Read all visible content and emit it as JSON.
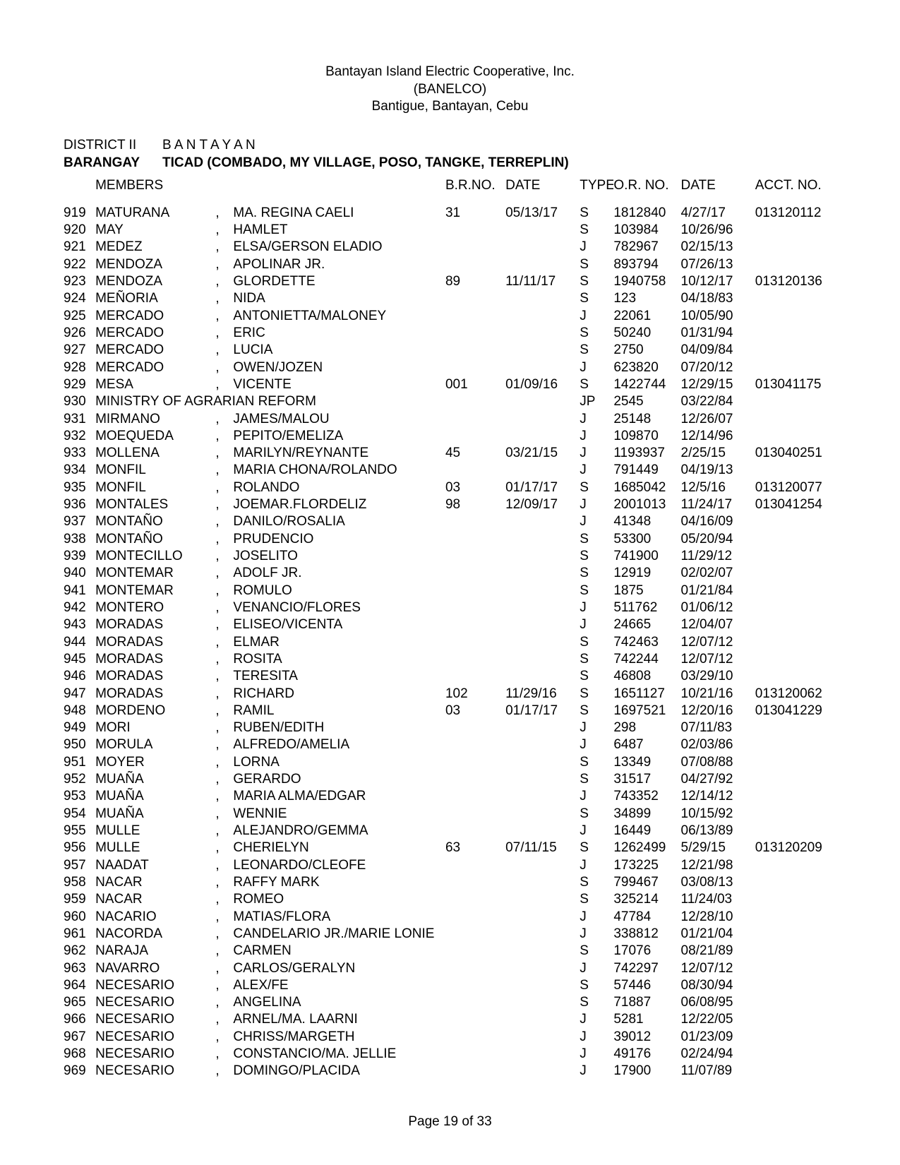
{
  "header": {
    "line1": "Bantayan Island Electric Cooperative, Inc.",
    "line2": "(BANELCO)",
    "line3": "Bantigue, Bantayan, Cebu"
  },
  "meta": {
    "district_label": "DISTRICT II",
    "district_value": "B A N T A Y A N",
    "barangay_label": "BARANGAY",
    "barangay_value": "TICAD (COMBADO, MY VILLAGE, POSO, TANGKE, TERREPLIN)",
    "members_label": "MEMBERS"
  },
  "columns": {
    "brno": "B.R.NO.",
    "date": "DATE",
    "type": "TYPE",
    "orno": "O.R. NO.",
    "odate": "DATE",
    "acct": "ACCT. NO."
  },
  "rows": [
    {
      "no": "919",
      "last": "MATURANA",
      "sep": ",",
      "first": "MA. REGINA CAELI",
      "brno": "31",
      "date": "05/13/17",
      "type": "S",
      "orno": "1812840",
      "odate": "4/27/17",
      "acct": "013120112"
    },
    {
      "no": "920",
      "last": "MAY",
      "sep": ",",
      "first": "HAMLET",
      "brno": "",
      "date": "",
      "type": "S",
      "orno": "103984",
      "odate": "10/26/96",
      "acct": ""
    },
    {
      "no": "921",
      "last": "MEDEZ",
      "sep": ",",
      "first": "ELSA/GERSON ELADIO",
      "brno": "",
      "date": "",
      "type": "J",
      "orno": "782967",
      "odate": "02/15/13",
      "acct": ""
    },
    {
      "no": "922",
      "last": "MENDOZA",
      "sep": ",",
      "first": "APOLINAR JR.",
      "brno": "",
      "date": "",
      "type": "S",
      "orno": "893794",
      "odate": "07/26/13",
      "acct": ""
    },
    {
      "no": "923",
      "last": "MENDOZA",
      "sep": ",",
      "first": "GLORDETTE",
      "brno": "89",
      "date": "11/11/17",
      "type": "S",
      "orno": "1940758",
      "odate": "10/12/17",
      "acct": "013120136"
    },
    {
      "no": "924",
      "last": "MEÑORIA",
      "sep": ",",
      "first": "NIDA",
      "brno": "",
      "date": "",
      "type": "S",
      "orno": "123",
      "odate": "04/18/83",
      "acct": ""
    },
    {
      "no": "925",
      "last": "MERCADO",
      "sep": ",",
      "first": "ANTONIETTA/MALONEY",
      "brno": "",
      "date": "",
      "type": "J",
      "orno": "22061",
      "odate": "10/05/90",
      "acct": ""
    },
    {
      "no": "926",
      "last": "MERCADO",
      "sep": ",",
      "first": "ERIC",
      "brno": "",
      "date": "",
      "type": "S",
      "orno": "50240",
      "odate": "01/31/94",
      "acct": ""
    },
    {
      "no": "927",
      "last": "MERCADO",
      "sep": ",",
      "first": "LUCIA",
      "brno": "",
      "date": "",
      "type": "S",
      "orno": "2750",
      "odate": "04/09/84",
      "acct": ""
    },
    {
      "no": "928",
      "last": "MERCADO",
      "sep": ",",
      "first": "OWEN/JOZEN",
      "brno": "",
      "date": "",
      "type": "J",
      "orno": "623820",
      "odate": "07/20/12",
      "acct": ""
    },
    {
      "no": "929",
      "last": "MESA",
      "sep": ",",
      "first": "VICENTE",
      "brno": "001",
      "date": "01/09/16",
      "type": "S",
      "orno": "1422744",
      "odate": "12/29/15",
      "acct": "013041175"
    },
    {
      "no": "930",
      "last": "MINISTRY OF AGRARIAN REFORM",
      "sep": "",
      "first": "",
      "brno": "",
      "date": "",
      "type": "JP",
      "orno": "2545",
      "odate": "03/22/84",
      "acct": ""
    },
    {
      "no": "931",
      "last": "MIRMANO",
      "sep": ",",
      "first": "JAMES/MALOU",
      "brno": "",
      "date": "",
      "type": "J",
      "orno": "25148",
      "odate": "12/26/07",
      "acct": ""
    },
    {
      "no": "932",
      "last": "MOEQUEDA",
      "sep": ",",
      "first": "PEPITO/EMELIZA",
      "brno": "",
      "date": "",
      "type": "J",
      "orno": "109870",
      "odate": "12/14/96",
      "acct": ""
    },
    {
      "no": "933",
      "last": "MOLLENA",
      "sep": ",",
      "first": "MARILYN/REYNANTE",
      "brno": "45",
      "date": "03/21/15",
      "type": "J",
      "orno": "1193937",
      "odate": "2/25/15",
      "acct": "013040251"
    },
    {
      "no": "934",
      "last": "MONFIL",
      "sep": ",",
      "first": "MARIA CHONA/ROLANDO",
      "brno": "",
      "date": "",
      "type": "J",
      "orno": "791449",
      "odate": "04/19/13",
      "acct": ""
    },
    {
      "no": "935",
      "last": "MONFIL",
      "sep": ",",
      "first": "ROLANDO",
      "brno": "03",
      "date": "01/17/17",
      "type": "S",
      "orno": "1685042",
      "odate": "12/5/16",
      "acct": "013120077"
    },
    {
      "no": "936",
      "last": "MONTALES",
      "sep": ",",
      "first": "JOEMAR.FLORDELIZ",
      "brno": "98",
      "date": "12/09/17",
      "type": "J",
      "orno": "2001013",
      "odate": "11/24/17",
      "acct": "013041254"
    },
    {
      "no": "937",
      "last": "MONTAÑO",
      "sep": ",",
      "first": "DANILO/ROSALIA",
      "brno": "",
      "date": "",
      "type": "J",
      "orno": "41348",
      "odate": "04/16/09",
      "acct": ""
    },
    {
      "no": "938",
      "last": "MONTAÑO",
      "sep": ",",
      "first": "PRUDENCIO",
      "brno": "",
      "date": "",
      "type": "S",
      "orno": "53300",
      "odate": "05/20/94",
      "acct": ""
    },
    {
      "no": "939",
      "last": "MONTECILLO",
      "sep": ",",
      "first": "JOSELITO",
      "brno": "",
      "date": "",
      "type": "S",
      "orno": "741900",
      "odate": "11/29/12",
      "acct": ""
    },
    {
      "no": "940",
      "last": "MONTEMAR",
      "sep": ",",
      "first": "ADOLF JR.",
      "brno": "",
      "date": "",
      "type": "S",
      "orno": "12919",
      "odate": "02/02/07",
      "acct": ""
    },
    {
      "no": "941",
      "last": "MONTEMAR",
      "sep": ",",
      "first": "ROMULO",
      "brno": "",
      "date": "",
      "type": "S",
      "orno": "1875",
      "odate": "01/21/84",
      "acct": ""
    },
    {
      "no": "942",
      "last": "MONTERO",
      "sep": ",",
      "first": "VENANCIO/FLORES",
      "brno": "",
      "date": "",
      "type": "J",
      "orno": "511762",
      "odate": "01/06/12",
      "acct": ""
    },
    {
      "no": "943",
      "last": "MORADAS",
      "sep": ",",
      "first": "ELISEO/VICENTA",
      "brno": "",
      "date": "",
      "type": "J",
      "orno": "24665",
      "odate": "12/04/07",
      "acct": ""
    },
    {
      "no": "944",
      "last": "MORADAS",
      "sep": ",",
      "first": "ELMAR",
      "brno": "",
      "date": "",
      "type": "S",
      "orno": "742463",
      "odate": "12/07/12",
      "acct": ""
    },
    {
      "no": "945",
      "last": "MORADAS",
      "sep": ",",
      "first": "ROSITA",
      "brno": "",
      "date": "",
      "type": "S",
      "orno": "742244",
      "odate": "12/07/12",
      "acct": ""
    },
    {
      "no": "946",
      "last": "MORADAS",
      "sep": ",",
      "first": "TERESITA",
      "brno": "",
      "date": "",
      "type": "S",
      "orno": "46808",
      "odate": "03/29/10",
      "acct": ""
    },
    {
      "no": "947",
      "last": "MORADAS",
      "sep": ",",
      "first": "RICHARD",
      "brno": "102",
      "date": "11/29/16",
      "type": "S",
      "orno": "1651127",
      "odate": "10/21/16",
      "acct": "013120062"
    },
    {
      "no": "948",
      "last": "MORDENO",
      "sep": ",",
      "first": "RAMIL",
      "brno": "03",
      "date": "01/17/17",
      "type": "S",
      "orno": "1697521",
      "odate": "12/20/16",
      "acct": "013041229"
    },
    {
      "no": "949",
      "last": "MORI",
      "sep": ",",
      "first": "RUBEN/EDITH",
      "brno": "",
      "date": "",
      "type": "J",
      "orno": "298",
      "odate": "07/11/83",
      "acct": ""
    },
    {
      "no": "950",
      "last": "MORULA",
      "sep": ",",
      "first": "ALFREDO/AMELIA",
      "brno": "",
      "date": "",
      "type": "J",
      "orno": "6487",
      "odate": "02/03/86",
      "acct": ""
    },
    {
      "no": "951",
      "last": "MOYER",
      "sep": ",",
      "first": "LORNA",
      "brno": "",
      "date": "",
      "type": "S",
      "orno": "13349",
      "odate": "07/08/88",
      "acct": ""
    },
    {
      "no": "952",
      "last": "MUAÑA",
      "sep": ",",
      "first": "GERARDO",
      "brno": "",
      "date": "",
      "type": "S",
      "orno": "31517",
      "odate": "04/27/92",
      "acct": ""
    },
    {
      "no": "953",
      "last": "MUAÑA",
      "sep": ",",
      "first": "MARIA ALMA/EDGAR",
      "brno": "",
      "date": "",
      "type": "J",
      "orno": "743352",
      "odate": "12/14/12",
      "acct": ""
    },
    {
      "no": "954",
      "last": "MUAÑA",
      "sep": ",",
      "first": "WENNIE",
      "brno": "",
      "date": "",
      "type": "S",
      "orno": "34899",
      "odate": "10/15/92",
      "acct": ""
    },
    {
      "no": "955",
      "last": "MULLE",
      "sep": ",",
      "first": "ALEJANDRO/GEMMA",
      "brno": "",
      "date": "",
      "type": "J",
      "orno": "16449",
      "odate": "06/13/89",
      "acct": ""
    },
    {
      "no": "956",
      "last": "MULLE",
      "sep": ",",
      "first": "CHERIELYN",
      "brno": "63",
      "date": "07/11/15",
      "type": "S",
      "orno": "1262499",
      "odate": "5/29/15",
      "acct": "013120209"
    },
    {
      "no": "957",
      "last": "NAADAT",
      "sep": ",",
      "first": "LEONARDO/CLEOFE",
      "brno": "",
      "date": "",
      "type": "J",
      "orno": "173225",
      "odate": "12/21/98",
      "acct": ""
    },
    {
      "no": "958",
      "last": "NACAR",
      "sep": ",",
      "first": "RAFFY MARK",
      "brno": "",
      "date": "",
      "type": "S",
      "orno": "799467",
      "odate": "03/08/13",
      "acct": ""
    },
    {
      "no": "959",
      "last": "NACAR",
      "sep": ",",
      "first": "ROMEO",
      "brno": "",
      "date": "",
      "type": "S",
      "orno": "325214",
      "odate": "11/24/03",
      "acct": ""
    },
    {
      "no": "960",
      "last": "NACARIO",
      "sep": ",",
      "first": "MATIAS/FLORA",
      "brno": "",
      "date": "",
      "type": "J",
      "orno": "47784",
      "odate": "12/28/10",
      "acct": ""
    },
    {
      "no": "961",
      "last": "NACORDA",
      "sep": ",",
      "first": "CANDELARIO JR./MARIE LONIE",
      "brno": "",
      "date": "",
      "type": "J",
      "orno": "338812",
      "odate": "01/21/04",
      "acct": ""
    },
    {
      "no": "962",
      "last": "NARAJA",
      "sep": ",",
      "first": "CARMEN",
      "brno": "",
      "date": "",
      "type": "S",
      "orno": "17076",
      "odate": "08/21/89",
      "acct": ""
    },
    {
      "no": "963",
      "last": "NAVARRO",
      "sep": ",",
      "first": "CARLOS/GERALYN",
      "brno": "",
      "date": "",
      "type": "J",
      "orno": "742297",
      "odate": "12/07/12",
      "acct": ""
    },
    {
      "no": "964",
      "last": "NECESARIO",
      "sep": ",",
      "first": "ALEX/FE",
      "brno": "",
      "date": "",
      "type": "S",
      "orno": "57446",
      "odate": "08/30/94",
      "acct": ""
    },
    {
      "no": "965",
      "last": "NECESARIO",
      "sep": ",",
      "first": "ANGELINA",
      "brno": "",
      "date": "",
      "type": "S",
      "orno": "71887",
      "odate": "06/08/95",
      "acct": ""
    },
    {
      "no": "966",
      "last": "NECESARIO",
      "sep": ",",
      "first": "ARNEL/MA. LAARNI",
      "brno": "",
      "date": "",
      "type": "J",
      "orno": "5281",
      "odate": "12/22/05",
      "acct": ""
    },
    {
      "no": "967",
      "last": "NECESARIO",
      "sep": ",",
      "first": "CHRISS/MARGETH",
      "brno": "",
      "date": "",
      "type": "J",
      "orno": "39012",
      "odate": "01/23/09",
      "acct": ""
    },
    {
      "no": "968",
      "last": "NECESARIO",
      "sep": ",",
      "first": "CONSTANCIO/MA. JELLIE",
      "brno": "",
      "date": "",
      "type": "J",
      "orno": "49176",
      "odate": "02/24/94",
      "acct": ""
    },
    {
      "no": "969",
      "last": "NECESARIO",
      "sep": ",",
      "first": "DOMINGO/PLACIDA",
      "brno": "",
      "date": "",
      "type": "J",
      "orno": "17900",
      "odate": "11/07/89",
      "acct": ""
    }
  ],
  "footer": "Page 19 of 33"
}
